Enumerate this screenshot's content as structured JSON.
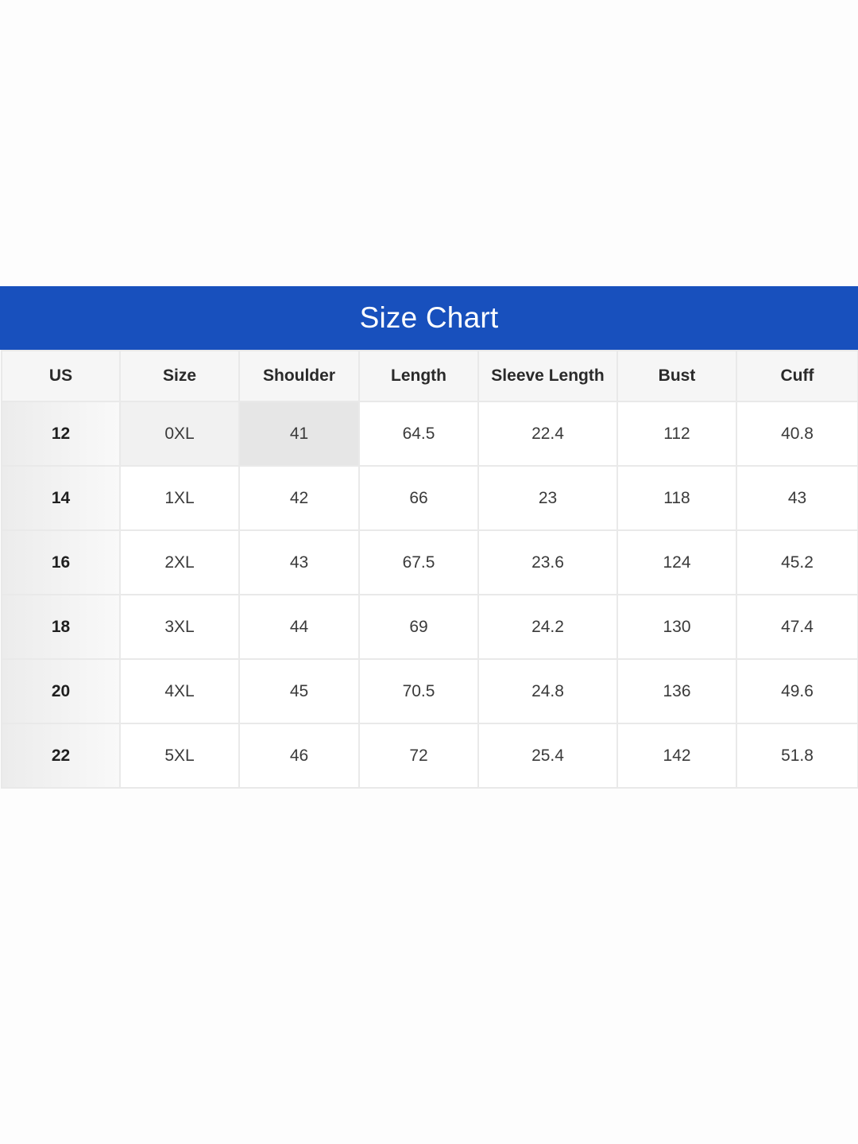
{
  "title": "Size Chart",
  "columns": [
    "US",
    "Size",
    "Shoulder",
    "Length",
    "Sleeve Length",
    "Bust",
    "Cuff"
  ],
  "rows": [
    [
      "12",
      "0XL",
      "41",
      "64.5",
      "22.4",
      "112",
      "40.8"
    ],
    [
      "14",
      "1XL",
      "42",
      "66",
      "23",
      "118",
      "43"
    ],
    [
      "16",
      "2XL",
      "43",
      "67.5",
      "23.6",
      "124",
      "45.2"
    ],
    [
      "18",
      "3XL",
      "44",
      "69",
      "24.2",
      "130",
      "47.4"
    ],
    [
      "20",
      "4XL",
      "45",
      "70.5",
      "24.8",
      "136",
      "49.6"
    ],
    [
      "22",
      "5XL",
      "46",
      "72",
      "25.4",
      "142",
      "51.8"
    ]
  ],
  "colors": {
    "banner": "#1850bd",
    "banner_text": "#ffffff",
    "border": "#e9e9e9",
    "header_bg": "#f6f6f6"
  }
}
